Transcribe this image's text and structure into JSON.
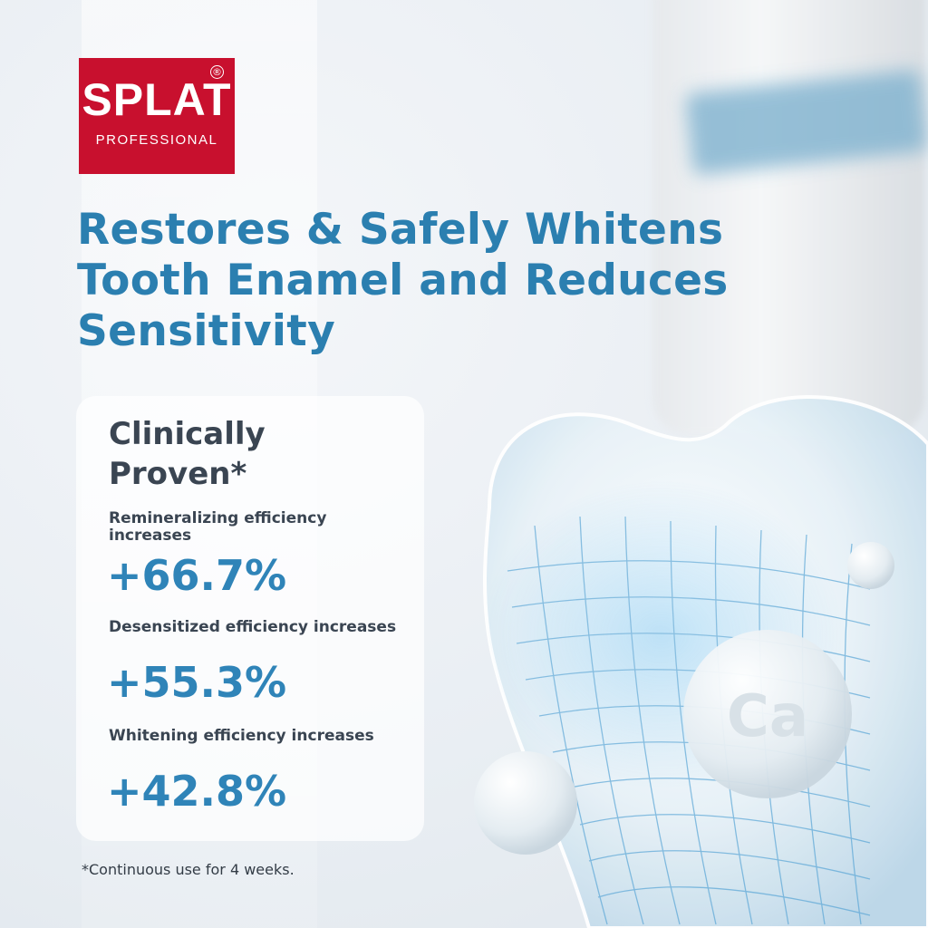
{
  "logo": {
    "name": "SPLAT",
    "subtitle": "PROFESSIONAL",
    "registered": "®"
  },
  "headline": "Restores & Safely Whitens Tooth Enamel and Reduces Sensitivity",
  "card": {
    "title": "Clinically Proven*",
    "stats": [
      {
        "label": "Remineralizing efficiency increases",
        "value": "+66.7%"
      },
      {
        "label": "Desensitized efficiency increases",
        "value": "+55.3%"
      },
      {
        "label": "Whitening efficiency increases",
        "value": "+42.8%"
      }
    ]
  },
  "illustration": {
    "mineral_label": "Ca",
    "icons": [
      "tooth-icon",
      "calcium-sphere-icon"
    ]
  },
  "footnote": "*Continuous use for 4 weeks.",
  "colors": {
    "brand_red": "#c8102e",
    "headline_blue": "#2b7fb0",
    "value_blue": "#2f84b8",
    "text_dark": "#3a4552"
  }
}
